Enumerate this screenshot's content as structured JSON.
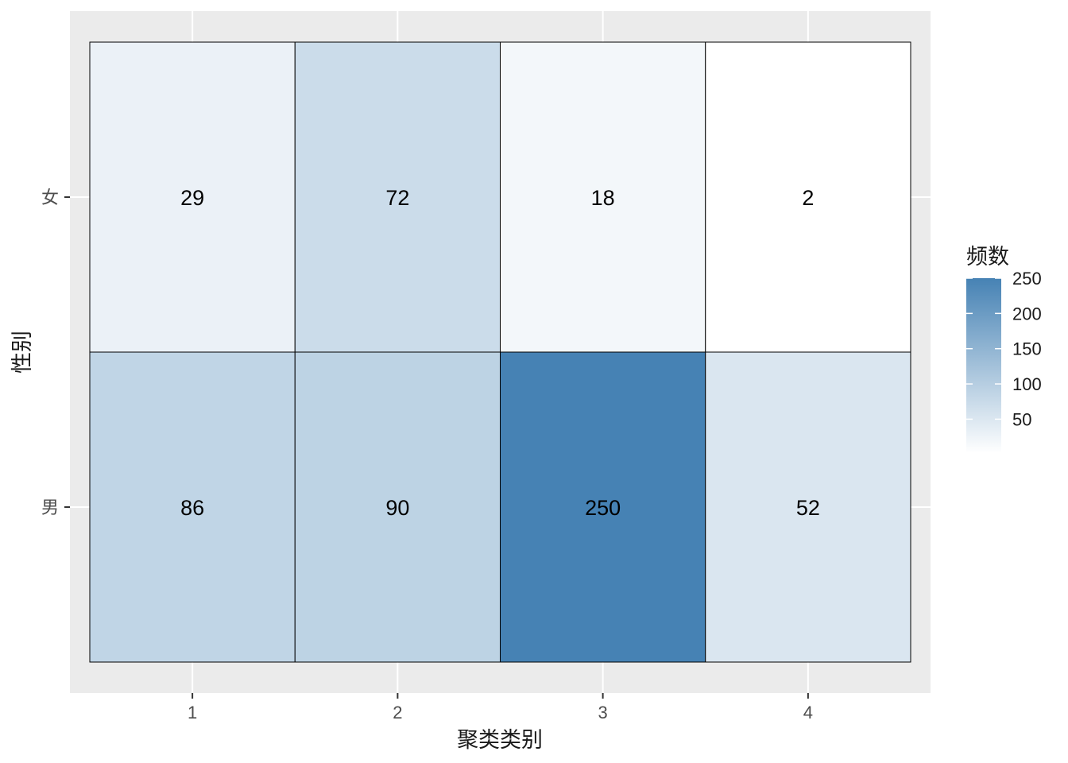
{
  "chart_data": {
    "type": "heatmap",
    "x_categories": [
      "1",
      "2",
      "3",
      "4"
    ],
    "y_categories": [
      "女",
      "男"
    ],
    "values": [
      [
        29,
        72,
        18,
        2
      ],
      [
        86,
        90,
        250,
        52
      ]
    ],
    "xlabel": "聚类类别",
    "ylabel": "性别",
    "legend": {
      "title": "频数",
      "position": "right",
      "ticks": [
        "50",
        "100",
        "150",
        "200",
        "250"
      ],
      "range": [
        2,
        250
      ],
      "low_color": "#ffffff",
      "high_color": "#4682b4"
    },
    "colors": {
      "panel_background": "#ebebeb",
      "grid": "#ffffff",
      "cell_border": "#000000"
    }
  }
}
